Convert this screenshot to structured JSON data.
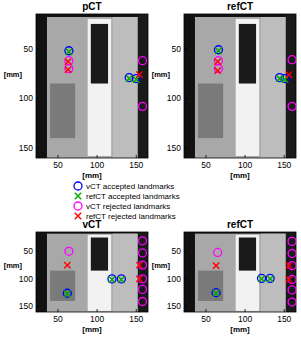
{
  "chart_data": [
    {
      "type": "scatter",
      "title": "pCT",
      "xlabel": "[mm]",
      "ylabel": "[mm]",
      "xlim": [
        22,
        165
      ],
      "ylim": [
        160,
        15
      ],
      "xticks": [
        50,
        100,
        150
      ],
      "yticks": [
        50,
        100,
        150
      ],
      "legend": "center",
      "series": [
        {
          "name": "vCT accepted landmarks",
          "color": "#0000ff",
          "marker": "circle",
          "x": [
            64,
            141,
            150
          ],
          "values": [
            52,
            79,
            80
          ]
        },
        {
          "name": "refCT accepted landmarks",
          "color": "#00aa00",
          "marker": "x",
          "x": [
            64,
            141,
            150
          ],
          "values": [
            53,
            80,
            81
          ]
        },
        {
          "name": "vCT rejected landmarks",
          "color": "#ff00ff",
          "marker": "circle",
          "x": [
            64,
            64,
            158,
            158
          ],
          "values": [
            62,
            70,
            62,
            108
          ]
        },
        {
          "name": "refCT rejected landmarks",
          "color": "#ff0000",
          "marker": "x",
          "x": [
            63,
            63,
            154
          ],
          "values": [
            63,
            71,
            76
          ]
        }
      ]
    },
    {
      "type": "scatter",
      "title": "refCT",
      "xlabel": "[mm]",
      "ylabel": "[mm]",
      "xlim": [
        22,
        165
      ],
      "ylim": [
        160,
        15
      ],
      "xticks": [
        50,
        100,
        150
      ],
      "yticks": [
        50,
        100,
        150
      ],
      "series": [
        {
          "color": "#0000ff",
          "marker": "circle",
          "x": [
            66,
            144,
            151
          ],
          "values": [
            51,
            79,
            80
          ]
        },
        {
          "color": "#00aa00",
          "marker": "x",
          "x": [
            66,
            144,
            151
          ],
          "values": [
            52,
            80,
            81
          ]
        },
        {
          "color": "#ff00ff",
          "marker": "circle",
          "x": [
            66,
            66,
            160,
            160
          ],
          "values": [
            62,
            70,
            61,
            108
          ]
        },
        {
          "color": "#ff0000",
          "marker": "x",
          "x": [
            65,
            65,
            156
          ],
          "values": [
            63,
            72,
            76
          ]
        }
      ]
    },
    {
      "type": "scatter",
      "title": "vCT",
      "xlabel": "[mm]",
      "ylabel": "[mm]",
      "xlim": [
        22,
        165
      ],
      "ylim": [
        160,
        15
      ],
      "xticks": [
        50,
        100,
        150
      ],
      "yticks": [
        50,
        100,
        150
      ],
      "series": [
        {
          "color": "#0000ff",
          "marker": "circle",
          "x": [
            62,
            119,
            131
          ],
          "values": [
            126,
            100,
            100
          ]
        },
        {
          "color": "#00aa00",
          "marker": "x",
          "x": [
            62,
            119,
            131
          ],
          "values": [
            127,
            101,
            101
          ]
        },
        {
          "color": "#ff00ff",
          "marker": "circle",
          "x": [
            64,
            158,
            158,
            158,
            158,
            158,
            158
          ],
          "values": [
            50,
            31,
            53,
            75,
            100,
            119,
            141
          ]
        },
        {
          "color": "#ff0000",
          "marker": "x",
          "x": [
            62,
            154,
            154
          ],
          "values": [
            75,
            75,
            100
          ]
        }
      ]
    },
    {
      "type": "scatter",
      "title": "refCT",
      "xlabel": "[mm]",
      "ylabel": "[mm]",
      "xlim": [
        22,
        165
      ],
      "ylim": [
        160,
        15
      ],
      "xticks": [
        50,
        100,
        150
      ],
      "yticks": [
        50,
        100,
        150
      ],
      "series": [
        {
          "color": "#0000ff",
          "marker": "circle",
          "x": [
            63,
            121,
            132
          ],
          "values": [
            125,
            99,
            99
          ]
        },
        {
          "color": "#00aa00",
          "marker": "x",
          "x": [
            63,
            121,
            132
          ],
          "values": [
            126,
            100,
            100
          ]
        },
        {
          "color": "#ff00ff",
          "marker": "circle",
          "x": [
            65,
            160,
            160,
            160,
            160,
            160,
            160
          ],
          "values": [
            52,
            32,
            54,
            76,
            101,
            120,
            142
          ]
        },
        {
          "color": "#ff0000",
          "marker": "x",
          "x": [
            63,
            156,
            156
          ],
          "values": [
            76,
            76,
            101
          ]
        }
      ]
    }
  ]
}
